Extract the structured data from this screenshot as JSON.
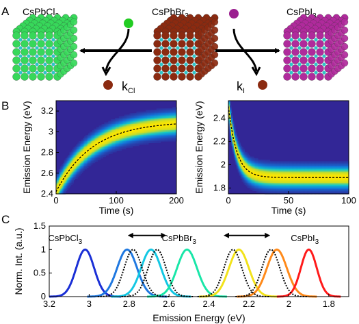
{
  "panel_a": {
    "label": "A",
    "cubes": [
      {
        "formula": "CsPbCl",
        "sub": "3",
        "colors": {
          "face": "#37d85a",
          "small": "#2ec4c8"
        }
      },
      {
        "formula": "CsPbBr",
        "sub": "3",
        "colors": {
          "face": "#8b2a10",
          "small": "#2ec4c8"
        }
      },
      {
        "formula": "CsPbI",
        "sub": "3",
        "colors": {
          "face": "#b02a9c",
          "small": "#2ec4c8"
        }
      }
    ],
    "rates": [
      {
        "symbol": "k",
        "sub": "Cl"
      },
      {
        "symbol": "k",
        "sub": "I"
      }
    ],
    "incoming_colors": {
      "cl": "#22cc22",
      "i": "#9b1f8f",
      "br": "#8b2a10"
    }
  },
  "panel_b": {
    "label": "B",
    "charts": [
      {
        "type": "heatmap",
        "ylabel": "Emission Energy (eV)",
        "xlabel": "Time (s)",
        "xlim": [
          0,
          200
        ],
        "ylim": [
          2.4,
          3.3
        ],
        "xticks": [
          "0",
          "100",
          "200"
        ],
        "xtick_values": [
          0,
          100,
          200
        ],
        "yticks": [
          "2.4",
          "2.6",
          "2.8",
          "3",
          "3.2"
        ],
        "ytick_values": [
          2.4,
          2.6,
          2.8,
          3.0,
          3.2
        ],
        "fit": {
          "start": 2.42,
          "end": 3.1,
          "tau": 60
        }
      },
      {
        "type": "heatmap",
        "ylabel": "Emission Energy (eV)",
        "xlabel": "Time (s)",
        "xlim": [
          0,
          100
        ],
        "ylim": [
          1.75,
          2.55
        ],
        "xticks": [
          "0",
          "50",
          "100"
        ],
        "xtick_values": [
          0,
          50,
          100
        ],
        "yticks": [
          "1.8",
          "2",
          "2.2",
          "2.4"
        ],
        "ytick_values": [
          1.8,
          2.0,
          2.2,
          2.4
        ],
        "fit": {
          "start": 2.5,
          "end": 1.89,
          "tau": 7
        }
      }
    ]
  },
  "panel_c": {
    "label": "C",
    "ylabel": "Norm. Int. (a.u.)",
    "xlabel": "Emission Energy (eV)",
    "xlim": [
      3.2,
      1.7
    ],
    "ylim": [
      0,
      1.5
    ],
    "xticks": [
      "3.2",
      "3",
      "2.8",
      "2.6",
      "2.4",
      "2.2",
      "2",
      "1.8"
    ],
    "xtick_values": [
      3.2,
      3.0,
      2.8,
      2.6,
      2.4,
      2.2,
      2.0,
      1.8
    ],
    "yticks": [
      "0",
      "0.5",
      "1",
      "1.5"
    ],
    "ytick_values": [
      0,
      0.5,
      1.0,
      1.5
    ],
    "labels": [
      {
        "text": "CsPbCl",
        "sub": "3",
        "x": 3.12,
        "y": 1.25
      },
      {
        "text": "CsPbBr",
        "sub": "3",
        "x": 2.55,
        "y": 1.25
      },
      {
        "text": "CsPbI",
        "sub": "3",
        "x": 1.92,
        "y": 1.25
      }
    ],
    "arrows": [
      {
        "from": 2.8,
        "to": 2.62,
        "y": 1.3
      },
      {
        "from": 2.32,
        "to": 2.1,
        "y": 1.3
      }
    ],
    "chart_data": {
      "type": "line",
      "series": [
        {
          "center": 3.02,
          "width": 0.045,
          "color": "#1a2fd6",
          "style": "solid"
        },
        {
          "center": 2.81,
          "width": 0.05,
          "color": "#1f78e0",
          "style": "solid"
        },
        {
          "center": 2.69,
          "width": 0.05,
          "color": "#13c7e3",
          "style": "solid"
        },
        {
          "center": 2.51,
          "width": 0.05,
          "color": "#19e6a8",
          "style": "solid"
        },
        {
          "center": 2.25,
          "width": 0.05,
          "color": "#f2e21a",
          "style": "solid"
        },
        {
          "center": 2.06,
          "width": 0.05,
          "color": "#ff8a1a",
          "style": "solid"
        },
        {
          "center": 1.9,
          "width": 0.04,
          "color": "#ff1a1a",
          "style": "solid"
        },
        {
          "center": 2.78,
          "width": 0.045,
          "color": "#000000",
          "style": "dotted"
        },
        {
          "center": 2.66,
          "width": 0.045,
          "color": "#000000",
          "style": "dotted"
        },
        {
          "center": 2.28,
          "width": 0.045,
          "color": "#000000",
          "style": "dotted"
        },
        {
          "center": 2.09,
          "width": 0.045,
          "color": "#000000",
          "style": "dotted"
        }
      ]
    }
  }
}
